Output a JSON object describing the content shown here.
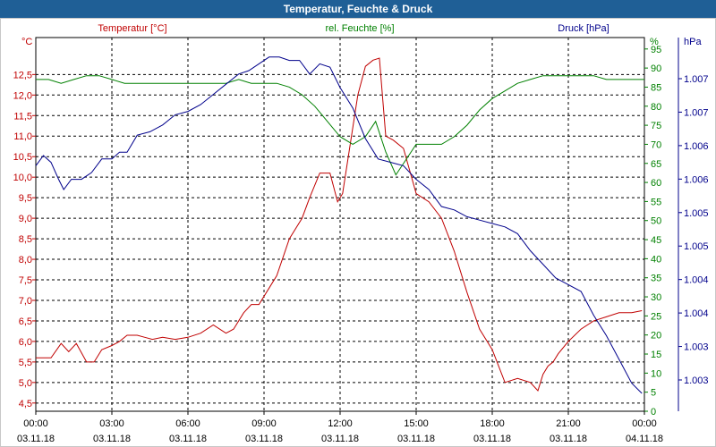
{
  "window": {
    "title": "Temperatur, Feuchte & Druck"
  },
  "colors": {
    "temperature": "#c00000",
    "humidity": "#008000",
    "pressure": "#00008b",
    "title_bar": "#1f5f96"
  },
  "chart_data": {
    "type": "line",
    "grid": true,
    "x_ticks": [
      {
        "time": "00:00",
        "date": "03.11.18"
      },
      {
        "time": "03:00",
        "date": "03.11.18"
      },
      {
        "time": "06:00",
        "date": "03.11.18"
      },
      {
        "time": "09:00",
        "date": "03.11.18"
      },
      {
        "time": "12:00",
        "date": "03.11.18"
      },
      {
        "time": "15:00",
        "date": "03.11.18"
      },
      {
        "time": "18:00",
        "date": "03.11.18"
      },
      {
        "time": "21:00",
        "date": "03.11.18"
      },
      {
        "time": "00:00",
        "date": "04.11.18"
      }
    ],
    "x_range_hours": [
      0,
      24
    ],
    "axes": {
      "temperature": {
        "unit_label": "°C",
        "series_label": "Temperatur [°C]",
        "range": [
          4.3,
          13.4
        ],
        "ticks": [
          "4,5",
          "5,0",
          "5,5",
          "6,0",
          "6,5",
          "7,0",
          "7,5",
          "8,0",
          "8,5",
          "9,0",
          "9,5",
          "10,0",
          "10,5",
          "11,0",
          "11,5",
          "12,0",
          "12,5"
        ]
      },
      "humidity": {
        "unit_label": "%",
        "series_label": "rel. Feuchte [%]",
        "range": [
          0,
          98
        ],
        "ticks": [
          "0",
          "5",
          "10",
          "15",
          "20",
          "25",
          "30",
          "35",
          "40",
          "45",
          "50",
          "55",
          "60",
          "65",
          "70",
          "75",
          "80",
          "85",
          "90",
          "95"
        ]
      },
      "pressure": {
        "unit_label": "hPa",
        "series_label": "Druck [hPa]",
        "ticks": [
          "1.003",
          "1.003",
          "1.004",
          "1.004",
          "1.005",
          "1.005",
          "1.006",
          "1.006",
          "1.007",
          "1.007"
        ]
      }
    },
    "series": [
      {
        "name": "Temperatur [°C]",
        "axis": "temperature",
        "x": [
          0,
          0.3,
          0.6,
          1.0,
          1.3,
          1.6,
          2.0,
          2.3,
          2.6,
          3.0,
          3.3,
          3.6,
          4.0,
          4.3,
          4.6,
          5.0,
          5.5,
          6.0,
          6.5,
          7.0,
          7.5,
          7.8,
          8.2,
          8.5,
          8.8,
          9.2,
          9.5,
          10.0,
          10.5,
          10.8,
          11.2,
          11.6,
          11.9,
          12.1,
          12.4,
          12.7,
          13.0,
          13.3,
          13.55,
          13.8,
          14.1,
          14.5,
          15.0,
          15.5,
          16.0,
          16.5,
          17.0,
          17.5,
          18.0,
          18.5,
          19.0,
          19.5,
          19.8,
          20.0,
          20.2,
          20.4,
          20.6,
          21.0,
          21.5,
          22.0,
          22.5,
          23.0,
          23.5,
          23.9
        ],
        "y": [
          5.6,
          5.6,
          5.6,
          5.95,
          5.75,
          5.95,
          5.5,
          5.5,
          5.8,
          5.9,
          6.0,
          6.15,
          6.15,
          6.1,
          6.05,
          6.1,
          6.05,
          6.1,
          6.2,
          6.4,
          6.2,
          6.3,
          6.7,
          6.9,
          6.9,
          7.3,
          7.6,
          8.5,
          9.0,
          9.5,
          10.1,
          10.1,
          9.4,
          9.6,
          10.8,
          12.0,
          12.7,
          12.85,
          12.9,
          11.0,
          10.9,
          10.7,
          9.6,
          9.4,
          9.0,
          8.2,
          7.2,
          6.3,
          5.8,
          5.0,
          5.1,
          5.0,
          4.8,
          5.2,
          5.4,
          5.5,
          5.7,
          6.0,
          6.3,
          6.5,
          6.6,
          6.7,
          6.7,
          6.75
        ]
      },
      {
        "name": "rel. Feuchte [%]",
        "axis": "humidity",
        "x": [
          0,
          0.5,
          1.0,
          1.5,
          2.0,
          2.5,
          3.0,
          3.5,
          4.0,
          4.5,
          5.0,
          5.5,
          6.0,
          6.5,
          7.0,
          7.5,
          8.0,
          8.5,
          9.0,
          9.5,
          10.0,
          10.5,
          11.0,
          11.5,
          12.0,
          12.5,
          13.0,
          13.4,
          13.8,
          14.2,
          14.6,
          15.0,
          15.5,
          16.0,
          16.5,
          17.0,
          17.5,
          18.0,
          18.5,
          19.0,
          19.5,
          20.0,
          20.5,
          21.0,
          21.5,
          22.0,
          22.5,
          23.0,
          23.5,
          24.0
        ],
        "y": [
          87,
          87,
          86,
          87,
          88,
          88,
          87,
          86,
          86,
          86,
          86,
          86,
          86,
          86,
          86,
          86,
          87,
          86,
          86,
          86,
          85,
          83,
          80,
          76,
          72,
          70,
          72,
          76,
          68,
          62,
          66,
          70,
          70,
          70,
          72,
          75,
          79,
          82,
          84,
          86,
          87,
          88,
          88,
          88,
          88,
          88,
          87,
          87,
          87,
          87
        ]
      },
      {
        "name": "Druck [hPa]",
        "axis": "pressure",
        "x": [
          0,
          0.3,
          0.6,
          0.9,
          1.1,
          1.4,
          1.8,
          2.2,
          2.6,
          3.0,
          3.3,
          3.6,
          4.0,
          4.5,
          5.0,
          5.5,
          6.0,
          6.5,
          7.0,
          7.5,
          8.0,
          8.4,
          8.8,
          9.2,
          9.6,
          10.0,
          10.4,
          10.8,
          11.2,
          11.6,
          12.0,
          12.5,
          13.0,
          13.5,
          14.0,
          14.5,
          15.0,
          15.5,
          16.0,
          16.5,
          17.0,
          17.5,
          18.0,
          18.5,
          19.0,
          19.5,
          20.0,
          20.5,
          21.0,
          21.5,
          22.0,
          22.5,
          23.0,
          23.5,
          23.9
        ],
        "y": [
          67,
          70,
          68,
          63,
          60,
          63,
          63,
          65,
          69,
          69,
          71,
          71,
          76,
          77,
          79,
          82,
          83,
          85,
          88,
          91,
          94,
          95,
          97,
          99,
          99,
          98,
          98,
          94,
          97,
          96,
          90,
          84,
          75,
          69,
          68,
          67,
          63,
          60,
          55,
          54,
          52,
          51,
          50,
          49,
          47,
          42,
          38,
          34,
          32,
          30,
          23,
          17,
          10,
          3,
          0
        ]
      }
    ]
  }
}
